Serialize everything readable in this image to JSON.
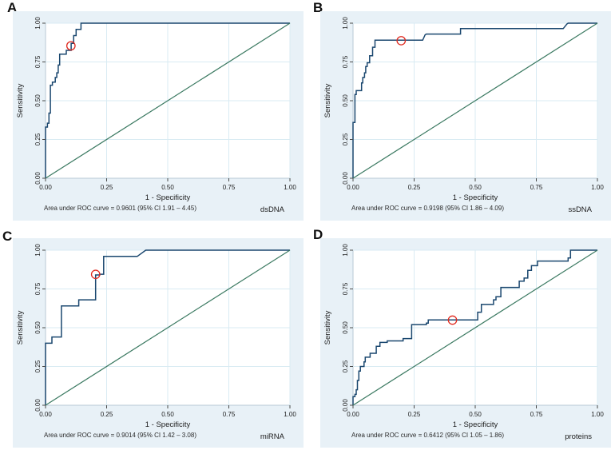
{
  "style": {
    "colors": {
      "roc_curve": "#1a476f",
      "reference_line": "#3c7a62",
      "cutoff_marker": "#e02b20",
      "panel_background": "#e8f1f7",
      "grid": "#d9ebf3"
    }
  },
  "chart_data": [
    {
      "type": "line",
      "panel_letter": "A",
      "analyte": "dsDNA",
      "auc": 0.9601,
      "ci_95": "1.91 – 4.45",
      "caption": "Area under ROC curve = 0.9601 (95% CI 1.91 – 4.45)",
      "xlabel": "1 - Specificity",
      "ylabel": "Sensitivity",
      "xlim": [
        0,
        1
      ],
      "ylim": [
        0,
        1
      ],
      "xticks": [
        0,
        0.25,
        0.5,
        0.75,
        1
      ],
      "yticks": [
        0,
        0.25,
        0.5,
        0.75,
        1
      ],
      "tick_labels": [
        "0.00",
        "0.25",
        "0.50",
        "0.75",
        "1.00"
      ],
      "grid": true,
      "series": [
        {
          "name": "ROC curve",
          "points": [
            [
              0,
              0
            ],
            [
              0,
              0.33
            ],
            [
              0.008,
              0.33
            ],
            [
              0.008,
              0.355
            ],
            [
              0.014,
              0.355
            ],
            [
              0.014,
              0.42
            ],
            [
              0.02,
              0.42
            ],
            [
              0.02,
              0.6
            ],
            [
              0.028,
              0.6
            ],
            [
              0.028,
              0.62
            ],
            [
              0.04,
              0.62
            ],
            [
              0.04,
              0.65
            ],
            [
              0.046,
              0.65
            ],
            [
              0.046,
              0.68
            ],
            [
              0.052,
              0.68
            ],
            [
              0.052,
              0.73
            ],
            [
              0.058,
              0.73
            ],
            [
              0.058,
              0.8
            ],
            [
              0.085,
              0.8
            ],
            [
              0.085,
              0.825
            ],
            [
              0.105,
              0.825
            ],
            [
              0.105,
              0.87
            ],
            [
              0.115,
              0.87
            ],
            [
              0.115,
              0.92
            ],
            [
              0.125,
              0.92
            ],
            [
              0.125,
              0.96
            ],
            [
              0.145,
              0.96
            ],
            [
              0.145,
              1
            ],
            [
              1,
              1
            ]
          ]
        },
        {
          "name": "reference line",
          "points": [
            [
              0,
              0
            ],
            [
              1,
              1
            ]
          ]
        }
      ],
      "cutoff_marker": {
        "x": 0.104,
        "y": 0.854
      }
    },
    {
      "type": "line",
      "panel_letter": "B",
      "analyte": "ssDNA",
      "auc": 0.9198,
      "ci_95": "1.86 – 4.09",
      "caption": "Area under ROC curve = 0.9198 (95% CI 1.86 – 4.09)",
      "xlabel": "1 - Specificity",
      "ylabel": "Sensitivity",
      "xlim": [
        0,
        1
      ],
      "ylim": [
        0,
        1
      ],
      "xticks": [
        0,
        0.25,
        0.5,
        0.75,
        1
      ],
      "yticks": [
        0,
        0.25,
        0.5,
        0.75,
        1
      ],
      "tick_labels": [
        "0.00",
        "0.25",
        "0.50",
        "0.75",
        "1.00"
      ],
      "grid": true,
      "series": [
        {
          "name": "ROC curve",
          "points": [
            [
              0,
              0
            ],
            [
              0,
              0.36
            ],
            [
              0.008,
              0.36
            ],
            [
              0.008,
              0.54
            ],
            [
              0.013,
              0.54
            ],
            [
              0.013,
              0.565
            ],
            [
              0.035,
              0.565
            ],
            [
              0.035,
              0.615
            ],
            [
              0.04,
              0.615
            ],
            [
              0.04,
              0.65
            ],
            [
              0.047,
              0.65
            ],
            [
              0.047,
              0.68
            ],
            [
              0.052,
              0.68
            ],
            [
              0.052,
              0.72
            ],
            [
              0.058,
              0.72
            ],
            [
              0.058,
              0.745
            ],
            [
              0.068,
              0.745
            ],
            [
              0.068,
              0.79
            ],
            [
              0.08,
              0.79
            ],
            [
              0.08,
              0.845
            ],
            [
              0.09,
              0.845
            ],
            [
              0.09,
              0.89
            ],
            [
              0.285,
              0.89
            ],
            [
              0.295,
              0.925
            ],
            [
              0.3,
              0.93
            ],
            [
              0.44,
              0.93
            ],
            [
              0.44,
              0.965
            ],
            [
              0.86,
              0.965
            ],
            [
              0.875,
              0.995
            ],
            [
              0.88,
              1
            ],
            [
              1,
              1
            ]
          ]
        },
        {
          "name": "reference line",
          "points": [
            [
              0,
              0
            ],
            [
              1,
              1
            ]
          ]
        }
      ],
      "cutoff_marker": {
        "x": 0.197,
        "y": 0.887
      }
    },
    {
      "type": "line",
      "panel_letter": "C",
      "analyte": "miRNA",
      "auc": 0.9014,
      "ci_95": "1.42 – 3.08",
      "caption": "Area under ROC curve = 0.9014 (95% CI 1.42 – 3.08)",
      "xlabel": "1 - Specificity",
      "ylabel": "Sensitivity",
      "xlim": [
        0,
        1
      ],
      "ylim": [
        0,
        1
      ],
      "xticks": [
        0,
        0.25,
        0.5,
        0.75,
        1
      ],
      "yticks": [
        0,
        0.25,
        0.5,
        0.75,
        1
      ],
      "tick_labels": [
        "0.00",
        "0.25",
        "0.50",
        "0.75",
        "1.00"
      ],
      "grid": true,
      "series": [
        {
          "name": "ROC curve",
          "points": [
            [
              0,
              0
            ],
            [
              0,
              0.4
            ],
            [
              0.026,
              0.4
            ],
            [
              0.026,
              0.44
            ],
            [
              0.065,
              0.44
            ],
            [
              0.065,
              0.64
            ],
            [
              0.136,
              0.64
            ],
            [
              0.136,
              0.68
            ],
            [
              0.205,
              0.68
            ],
            [
              0.205,
              0.84
            ],
            [
              0.222,
              0.84
            ],
            [
              0.222,
              0.845
            ],
            [
              0.238,
              0.845
            ],
            [
              0.238,
              0.96
            ],
            [
              0.375,
              0.96
            ],
            [
              0.41,
              1
            ],
            [
              1,
              1
            ]
          ]
        },
        {
          "name": "reference line",
          "points": [
            [
              0,
              0
            ],
            [
              1,
              1
            ]
          ]
        }
      ],
      "cutoff_marker": {
        "x": 0.205,
        "y": 0.844
      }
    },
    {
      "type": "line",
      "panel_letter": "D",
      "analyte": "proteins",
      "auc": 0.6412,
      "ci_95": "1.05 – 1.86",
      "caption": "Area under ROC curve = 0.6412 (95% CI 1.05 – 1.86)",
      "xlabel": "1 - Specificity",
      "ylabel": "Sensitivity",
      "xlim": [
        0,
        1
      ],
      "ylim": [
        0,
        1
      ],
      "xticks": [
        0,
        0.25,
        0.5,
        0.75,
        1
      ],
      "yticks": [
        0,
        0.25,
        0.5,
        0.75,
        1
      ],
      "tick_labels": [
        "0.00",
        "0.25",
        "0.50",
        "0.75",
        "1.00"
      ],
      "grid": true,
      "series": [
        {
          "name": "ROC curve",
          "points": [
            [
              0,
              0
            ],
            [
              0,
              0.055
            ],
            [
              0.008,
              0.055
            ],
            [
              0.008,
              0.07
            ],
            [
              0.013,
              0.07
            ],
            [
              0.013,
              0.1
            ],
            [
              0.018,
              0.1
            ],
            [
              0.018,
              0.16
            ],
            [
              0.024,
              0.16
            ],
            [
              0.024,
              0.22
            ],
            [
              0.03,
              0.22
            ],
            [
              0.03,
              0.25
            ],
            [
              0.045,
              0.25
            ],
            [
              0.045,
              0.28
            ],
            [
              0.05,
              0.28
            ],
            [
              0.05,
              0.31
            ],
            [
              0.07,
              0.31
            ],
            [
              0.07,
              0.335
            ],
            [
              0.095,
              0.335
            ],
            [
              0.095,
              0.38
            ],
            [
              0.11,
              0.38
            ],
            [
              0.11,
              0.405
            ],
            [
              0.14,
              0.405
            ],
            [
              0.14,
              0.415
            ],
            [
              0.205,
              0.415
            ],
            [
              0.205,
              0.43
            ],
            [
              0.24,
              0.43
            ],
            [
              0.24,
              0.52
            ],
            [
              0.3,
              0.52
            ],
            [
              0.3,
              0.53
            ],
            [
              0.308,
              0.53
            ],
            [
              0.308,
              0.55
            ],
            [
              0.51,
              0.55
            ],
            [
              0.51,
              0.6
            ],
            [
              0.525,
              0.6
            ],
            [
              0.525,
              0.65
            ],
            [
              0.575,
              0.65
            ],
            [
              0.575,
              0.68
            ],
            [
              0.585,
              0.68
            ],
            [
              0.585,
              0.7
            ],
            [
              0.605,
              0.7
            ],
            [
              0.605,
              0.76
            ],
            [
              0.68,
              0.76
            ],
            [
              0.68,
              0.8
            ],
            [
              0.7,
              0.8
            ],
            [
              0.7,
              0.82
            ],
            [
              0.715,
              0.82
            ],
            [
              0.715,
              0.87
            ],
            [
              0.73,
              0.87
            ],
            [
              0.73,
              0.9
            ],
            [
              0.755,
              0.9
            ],
            [
              0.755,
              0.93
            ],
            [
              0.88,
              0.93
            ],
            [
              0.88,
              0.95
            ],
            [
              0.89,
              0.95
            ],
            [
              0.89,
              1
            ],
            [
              1,
              1
            ]
          ]
        },
        {
          "name": "reference line",
          "points": [
            [
              0,
              0
            ],
            [
              1,
              1
            ]
          ]
        }
      ],
      "cutoff_marker": {
        "x": 0.407,
        "y": 0.549
      }
    }
  ]
}
